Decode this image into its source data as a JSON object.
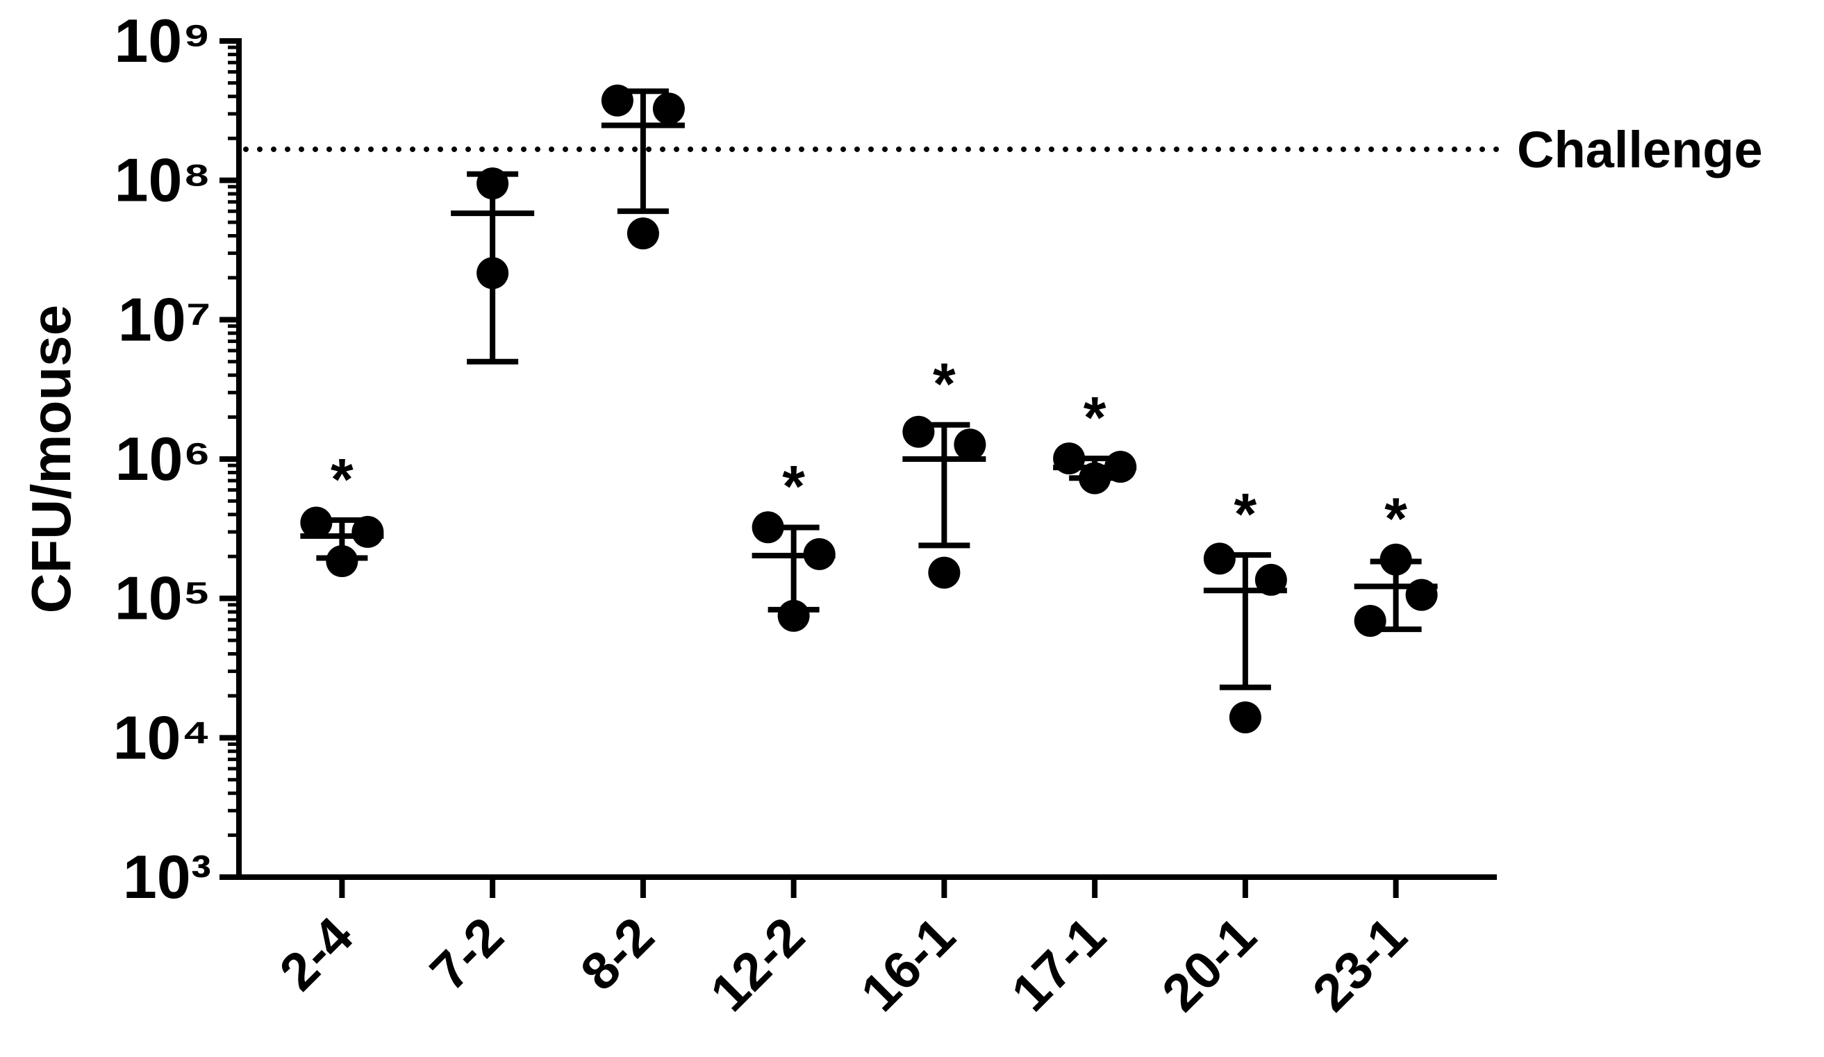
{
  "chart_data": {
    "type": "dot",
    "y_label": "CFU/mouse",
    "log_scale": true,
    "color": "#000000",
    "categories": [
      "2-4",
      "7-2",
      "8-2",
      "12-2",
      "16-1",
      "17-1",
      "20-1",
      "23-1"
    ],
    "groups": [
      {
        "values": [
          350000,
          300000,
          185000
        ],
        "mean": 280000,
        "sd": 85000
      },
      {
        "values": [
          95000000,
          21600000
        ],
        "mean": 58000000,
        "sd": 53000000
      },
      {
        "values": [
          374000000,
          327000000,
          41600000
        ],
        "mean": 248000000,
        "sd": 188000000
      },
      {
        "values": [
          324000,
          208000,
          75000
        ],
        "mean": 203000,
        "sd": 120000
      },
      {
        "values": [
          1570000,
          1270000,
          153000
        ],
        "mean": 1000000,
        "sd": 760000
      },
      {
        "values": [
          1010000,
          880000,
          728000
        ],
        "mean": 870000,
        "sd": 140000
      },
      {
        "values": [
          193000,
          136000,
          14000
        ],
        "mean": 114000,
        "sd": 91000
      },
      {
        "values": [
          69000,
          106000,
          190000
        ],
        "mean": 122000,
        "sd": 62000
      }
    ],
    "significance": [
      "*",
      null,
      null,
      "*",
      "*",
      "*",
      "*",
      "*"
    ],
    "reference_line": {
      "value": 167000000,
      "label": "Challenge"
    },
    "ylim": [
      1000,
      1000000000
    ],
    "yticks": [
      {
        "value": 1000,
        "label": "10³"
      },
      {
        "value": 10000,
        "label": "10⁴"
      },
      {
        "value": 100000,
        "label": "10⁵"
      },
      {
        "value": 1000000,
        "label": "10⁶"
      },
      {
        "value": 10000000,
        "label": "10⁷"
      },
      {
        "value": 100000000,
        "label": "10⁸"
      },
      {
        "value": 1000000000,
        "label": "10⁹"
      }
    ],
    "minor_ticks": true
  }
}
